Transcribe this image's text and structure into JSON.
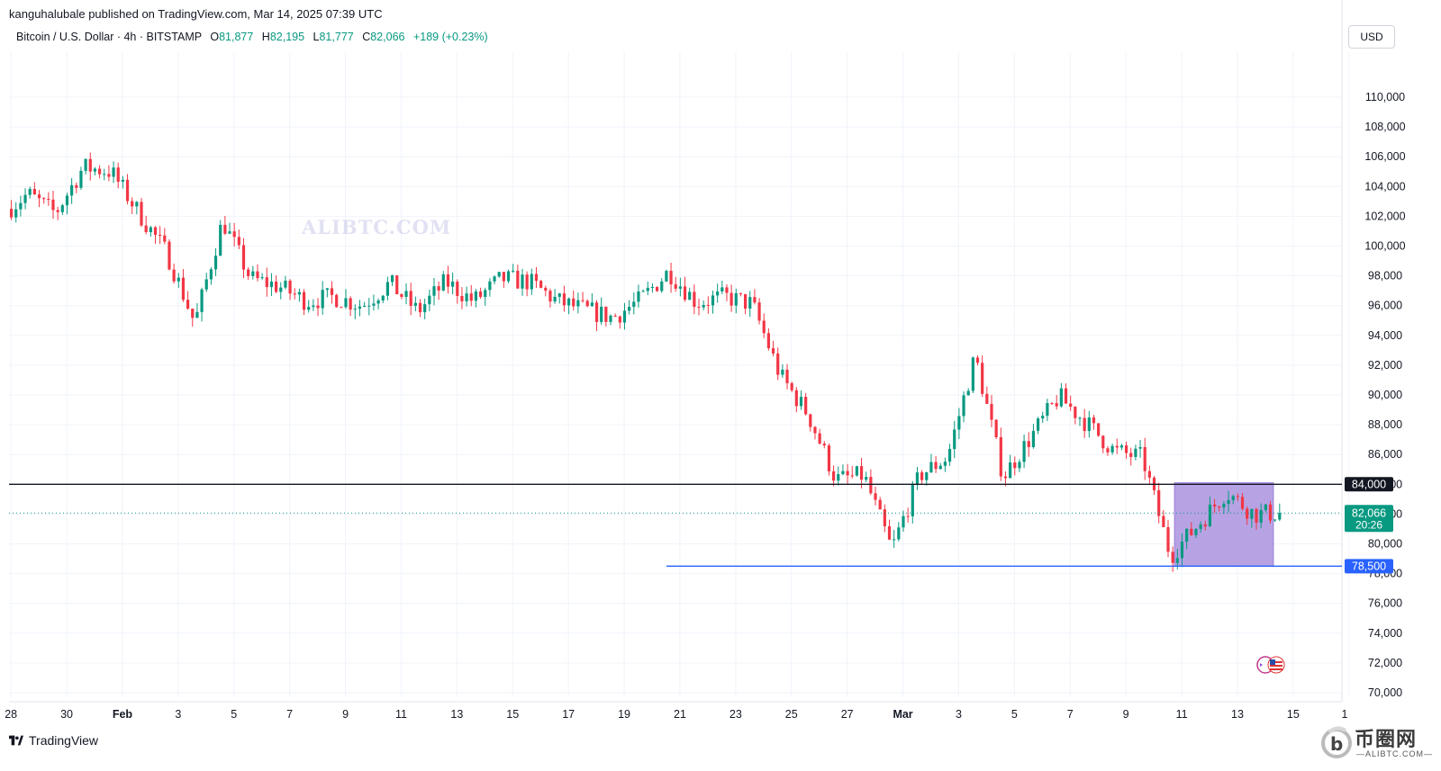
{
  "header": {
    "publisher": "kanguhalubale published on TradingView.com, Mar 14, 2025 07:39 UTC"
  },
  "legend": {
    "symbol": "Bitcoin / U.S. Dollar · 4h · BITSTAMP",
    "o_label": "O",
    "o_value": "81,877",
    "h_label": "H",
    "h_value": "82,195",
    "l_label": "L",
    "l_value": "81,777",
    "c_label": "C",
    "c_value": "82,066",
    "change": "+189 (+0.23%)"
  },
  "currency": "USD",
  "watermark": "ALIBTC.COM",
  "brand": {
    "name": "TradingView"
  },
  "corner_logo": {
    "cn": "币圈网",
    "domain": "—ALIBTC.COM—"
  },
  "colors": {
    "up": "#089981",
    "down": "#f23645",
    "grid": "#f0f3fa",
    "support_line": "#2962ff",
    "resistance_line": "#131722",
    "range_box": "#9b7fd9"
  },
  "chart_data": {
    "type": "candlestick",
    "x_ticks": [
      "28",
      "30",
      "Feb",
      "3",
      "5",
      "7",
      "9",
      "11",
      "13",
      "15",
      "17",
      "19",
      "21",
      "23",
      "25",
      "27",
      "Mar",
      "3",
      "5",
      "7",
      "9",
      "11",
      "13",
      "15",
      "1"
    ],
    "y_ticks": [
      "70,000",
      "72,000",
      "74,000",
      "76,000",
      "78,000",
      "80,000",
      "82,000",
      "84,000",
      "86,000",
      "88,000",
      "90,000",
      "92,000",
      "94,000",
      "96,000",
      "98,000",
      "100,000",
      "102,000",
      "104,000",
      "106,000",
      "108,000",
      "110,000"
    ],
    "ylim": [
      69000,
      111500
    ],
    "grid": true,
    "series": [
      {
        "key": "btcusd",
        "close_path": [
          [
            "2025-01-27",
            102000
          ],
          [
            "2025-01-28",
            103500
          ],
          [
            "2025-01-29",
            102200
          ],
          [
            "2025-01-30",
            105300
          ],
          [
            "2025-01-31",
            105000
          ],
          [
            "2025-02-01",
            102200
          ],
          [
            "2025-02-02",
            99500
          ],
          [
            "2025-02-03",
            94800
          ],
          [
            "2025-02-04",
            101700
          ],
          [
            "2025-02-05",
            97800
          ],
          [
            "2025-02-06",
            97300
          ],
          [
            "2025-02-07",
            96300
          ],
          [
            "2025-02-08",
            96600
          ],
          [
            "2025-02-09",
            96000
          ],
          [
            "2025-02-10",
            97500
          ],
          [
            "2025-02-11",
            95600
          ],
          [
            "2025-02-12",
            97600
          ],
          [
            "2025-02-13",
            96300
          ],
          [
            "2025-02-14",
            97800
          ],
          [
            "2025-02-15",
            97600
          ],
          [
            "2025-02-16",
            96300
          ],
          [
            "2025-02-17",
            95700
          ],
          [
            "2025-02-18",
            95200
          ],
          [
            "2025-02-19",
            96400
          ],
          [
            "2025-02-20",
            98300
          ],
          [
            "2025-02-21",
            96200
          ],
          [
            "2025-02-22",
            96600
          ],
          [
            "2025-02-23",
            96100
          ],
          [
            "2025-02-24",
            91300
          ],
          [
            "2025-02-25",
            88700
          ],
          [
            "2025-02-26",
            84300
          ],
          [
            "2025-02-27",
            84600
          ],
          [
            "2025-02-28",
            79600
          ],
          [
            "2025-03-01",
            84600
          ],
          [
            "2025-03-02",
            85800
          ],
          [
            "2025-03-03",
            92600
          ],
          [
            "2025-03-04",
            84500
          ],
          [
            "2025-03-05",
            87200
          ],
          [
            "2025-03-06",
            89900
          ],
          [
            "2025-03-07",
            88100
          ],
          [
            "2025-03-08",
            86200
          ],
          [
            "2025-03-09",
            85800
          ],
          [
            "2025-03-10",
            79200
          ],
          [
            "2025-03-11",
            81300
          ],
          [
            "2025-03-12",
            83500
          ],
          [
            "2025-03-13",
            82000
          ],
          [
            "2025-03-14",
            82066
          ]
        ]
      }
    ],
    "levels": [
      {
        "label": "84,000",
        "value": 84000,
        "style": "resistance"
      },
      {
        "label": "78,500",
        "value": 78500,
        "style": "support"
      }
    ],
    "last_price": {
      "label": "82,066",
      "countdown": "20:26",
      "value": 82066
    },
    "range_box": {
      "x_start": "2025-03-10",
      "x_end": "2025-03-14",
      "y_low": 78500,
      "y_high": 84100
    }
  }
}
